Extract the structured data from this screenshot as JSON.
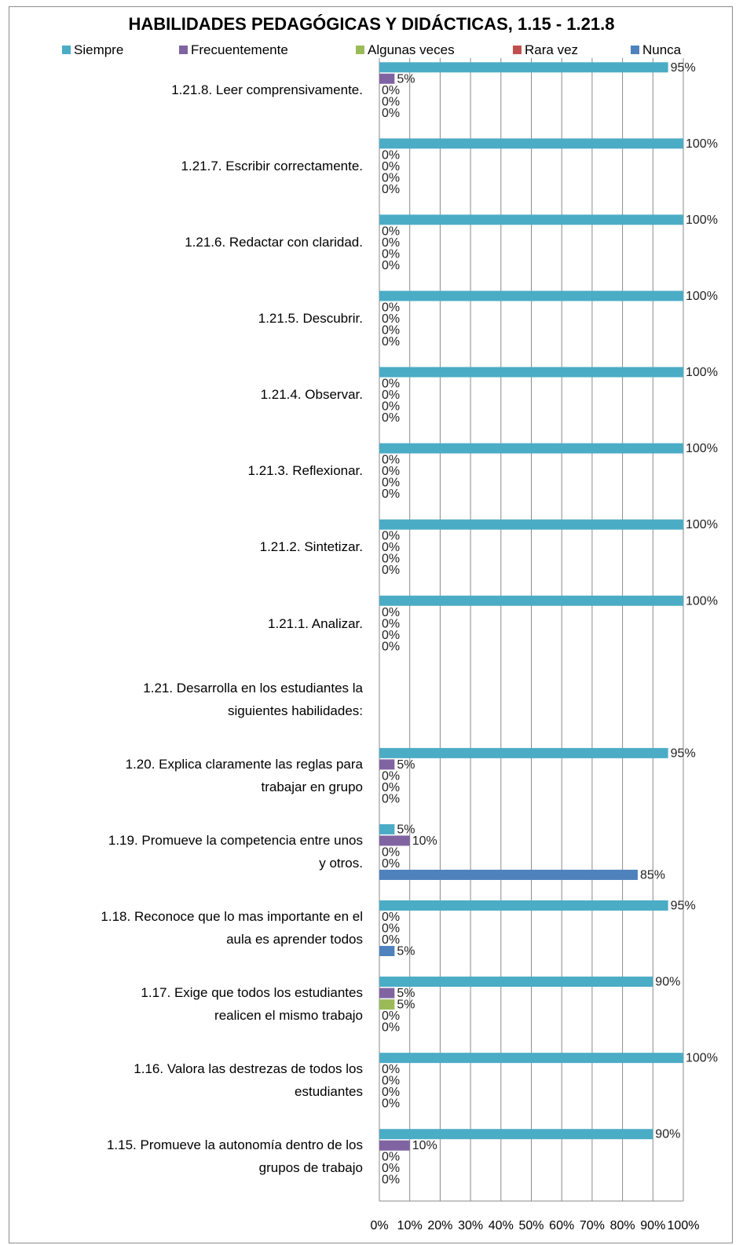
{
  "chart_data": {
    "type": "bar",
    "orientation": "horizontal",
    "title": "HABILIDADES PEDAGÓGICAS Y DIDÁCTICAS, 1.15 - 1.21.8",
    "xlim": [
      0,
      100
    ],
    "x_ticks": [
      "0%",
      "10%",
      "20%",
      "30%",
      "40%",
      "50%",
      "60%",
      "70%",
      "80%",
      "90%",
      "100%"
    ],
    "grid": true,
    "legend_position": "top",
    "series": [
      {
        "name": "Siempre",
        "color": "#4bacc6"
      },
      {
        "name": "Frecuentemente",
        "color": "#8064a2"
      },
      {
        "name": "Algunas veces",
        "color": "#9bbb59"
      },
      {
        "name": "Rara vez",
        "color": "#c0504d"
      },
      {
        "name": "Nunca",
        "color": "#4f81bd"
      }
    ],
    "categories": [
      {
        "label": "1.21.8.  Leer comprensivamente.",
        "values": [
          95,
          5,
          0,
          0,
          0
        ],
        "value_labels": [
          "95%",
          "5%",
          "0%",
          "0%",
          "0%"
        ]
      },
      {
        "label": "1.21.7.  Escribir correctamente.",
        "values": [
          100,
          0,
          0,
          0,
          0
        ],
        "value_labels": [
          "100%",
          "0%",
          "0%",
          "0%",
          "0%"
        ]
      },
      {
        "label": "1.21.6.  Redactar con claridad.",
        "values": [
          100,
          0,
          0,
          0,
          0
        ],
        "value_labels": [
          "100%",
          "0%",
          "0%",
          "0%",
          "0%"
        ]
      },
      {
        "label": "1.21.5.  Descubrir.",
        "values": [
          100,
          0,
          0,
          0,
          0
        ],
        "value_labels": [
          "100%",
          "0%",
          "0%",
          "0%",
          "0%"
        ]
      },
      {
        "label": "1.21.4.  Observar.",
        "values": [
          100,
          0,
          0,
          0,
          0
        ],
        "value_labels": [
          "100%",
          "0%",
          "0%",
          "0%",
          "0%"
        ]
      },
      {
        "label": "1.21.3.  Reflexionar.",
        "values": [
          100,
          0,
          0,
          0,
          0
        ],
        "value_labels": [
          "100%",
          "0%",
          "0%",
          "0%",
          "0%"
        ]
      },
      {
        "label": "1.21.2.  Sintetizar.",
        "values": [
          100,
          0,
          0,
          0,
          0
        ],
        "value_labels": [
          "100%",
          "0%",
          "0%",
          "0%",
          "0%"
        ]
      },
      {
        "label": "1.21.1.  Analizar.",
        "values": [
          100,
          0,
          0,
          0,
          0
        ],
        "value_labels": [
          "100%",
          "0%",
          "0%",
          "0%",
          "0%"
        ]
      },
      {
        "label": "1.21.  Desarrolla en los estudiantes la\nsiguientes  habilidades:",
        "values": [
          null,
          null,
          null,
          null,
          null
        ],
        "value_labels": [
          null,
          null,
          null,
          null,
          null
        ]
      },
      {
        "label": "1.20.  Explica claramente las reglas para\ntrabajar en grupo",
        "values": [
          95,
          5,
          0,
          0,
          0
        ],
        "value_labels": [
          "95%",
          "5%",
          "0%",
          "0%",
          "0%"
        ]
      },
      {
        "label": "1.19.  Promueve la competencia entre unos\ny otros.",
        "values": [
          5,
          10,
          0,
          0,
          85
        ],
        "value_labels": [
          "5%",
          "10%",
          "0%",
          "0%",
          "85%"
        ]
      },
      {
        "label": "1.18.  Reconoce que lo mas importante en el\naula es aprender todos",
        "values": [
          95,
          0,
          0,
          0,
          5
        ],
        "value_labels": [
          "95%",
          "0%",
          "0%",
          "0%",
          "5%"
        ]
      },
      {
        "label": "1.17.  Exige que todos los estudiantes\nrealicen el mismo trabajo",
        "values": [
          90,
          5,
          5,
          0,
          0
        ],
        "value_labels": [
          "90%",
          "5%",
          "5%",
          "0%",
          "0%"
        ]
      },
      {
        "label": "1.16.  Valora las destrezas de todos los\nestudiantes",
        "values": [
          100,
          0,
          0,
          0,
          0
        ],
        "value_labels": [
          "100%",
          "0%",
          "0%",
          "0%",
          "0%"
        ]
      },
      {
        "label": "1.15.  Promueve la autonomía dentro de los\ngrupos de trabajo",
        "values": [
          90,
          10,
          0,
          0,
          0
        ],
        "value_labels": [
          "90%",
          "10%",
          "0%",
          "0%",
          "0%"
        ]
      }
    ]
  }
}
